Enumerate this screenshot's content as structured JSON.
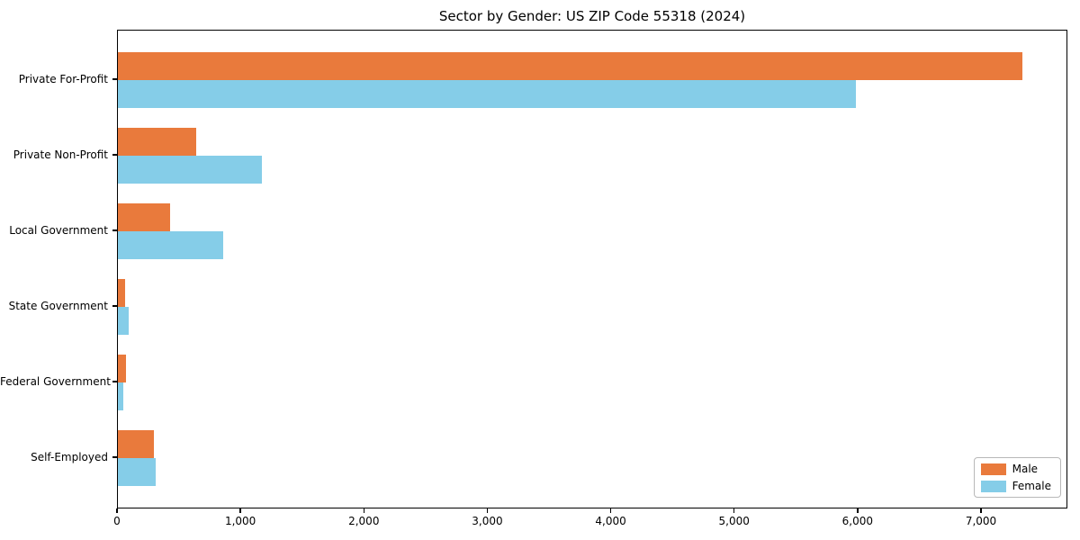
{
  "chart_data": {
    "type": "bar",
    "orientation": "horizontal",
    "title": "Sector by Gender: US ZIP Code 55318 (2024)",
    "categories": [
      "Private For-Profit",
      "Private Non-Profit",
      "Local Government",
      "State Government",
      "Federal Government",
      "Self-Employed"
    ],
    "series": [
      {
        "name": "Male",
        "color": "#E97A3C",
        "values": [
          7330,
          635,
          420,
          55,
          65,
          295
        ]
      },
      {
        "name": "Female",
        "color": "#85CDE8",
        "values": [
          5980,
          1170,
          850,
          85,
          45,
          305
        ]
      }
    ],
    "xlabel": "",
    "ylabel": "",
    "xlim": [
      0,
      7700
    ],
    "xticks": [
      0,
      1000,
      2000,
      3000,
      4000,
      5000,
      6000,
      7000
    ],
    "xtick_labels": [
      "0",
      "1,000",
      "2,000",
      "3,000",
      "4,000",
      "5,000",
      "6,000",
      "7,000"
    ],
    "grid": false,
    "legend_position": "lower right",
    "background_color": "#ffffff",
    "axis_color": "#000000"
  }
}
